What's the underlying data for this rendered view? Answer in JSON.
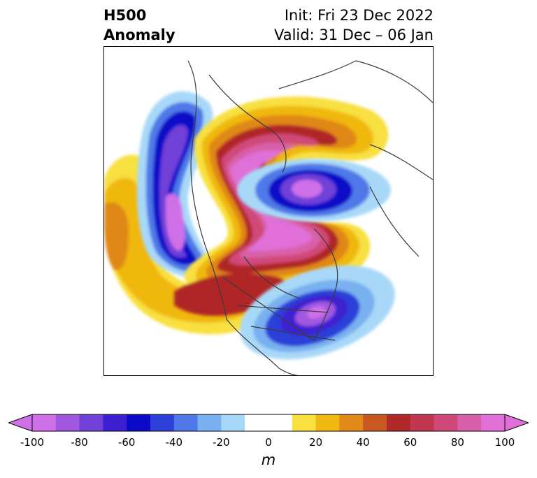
{
  "header": {
    "title_line1": "H500",
    "title_line2": "Anomaly",
    "init": "Init: Fri 23 Dec 2022",
    "valid": "Valid: 31 Dec – 06 Jan"
  },
  "colorbar": {
    "units": "m",
    "ticks": [
      "-100",
      "-80",
      "-60",
      "-40",
      "-20",
      "0",
      "20",
      "40",
      "60",
      "80",
      "100"
    ],
    "colors": [
      "#d070e8",
      "#a058e0",
      "#7040d8",
      "#3c20d0",
      "#0a0ac8",
      "#2c40d8",
      "#5078e8",
      "#78b0f0",
      "#a8d8f8",
      "#ffffff",
      "#ffffff",
      "#f8e040",
      "#f0b810",
      "#e08818",
      "#c85820",
      "#b02828",
      "#c03850",
      "#d04878",
      "#d860a8",
      "#e070d8"
    ],
    "extend": "both"
  },
  "map": {
    "projection": "polar-stereographic",
    "field": "500 hPa geopotential height anomaly"
  }
}
